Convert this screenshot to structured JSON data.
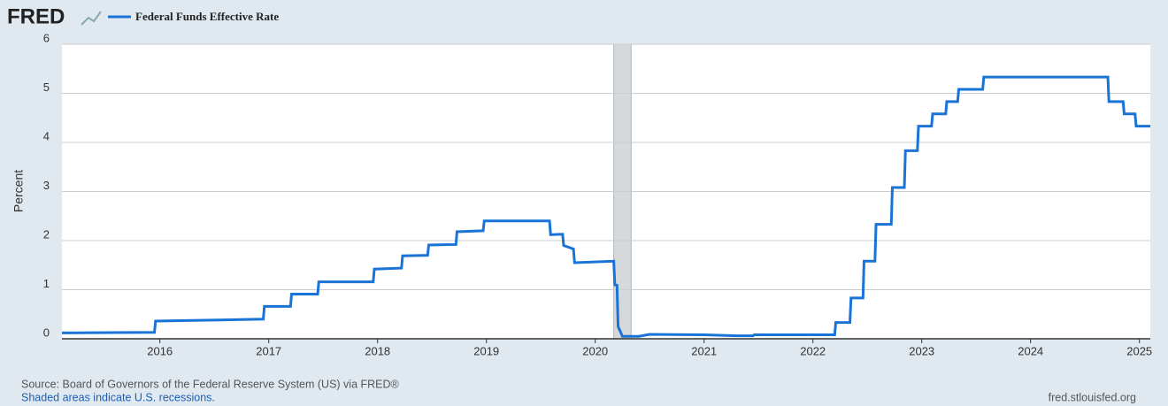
{
  "chart_data": {
    "type": "line",
    "logo": "FRED",
    "ylabel": "Percent",
    "source": "Source: Board of Governors of the Federal Reserve System (US) via FRED®",
    "recession_note": "Shaded areas indicate U.S. recessions.",
    "site": "fred.stlouisfed.org",
    "xlim": [
      2015.1,
      2025.1
    ],
    "xticks": [
      2016,
      2017,
      2018,
      2019,
      2020,
      2021,
      2022,
      2023,
      2024,
      2025
    ],
    "ylim": [
      0,
      6
    ],
    "yticks": [
      0,
      1,
      2,
      3,
      4,
      5,
      6
    ],
    "grid": true,
    "recessions": [
      [
        2020.17,
        2020.33
      ]
    ],
    "x": [
      2015.1,
      2015.95,
      2015.96,
      2016.95,
      2016.96,
      2017.2,
      2017.21,
      2017.45,
      2017.46,
      2017.96,
      2017.97,
      2018.22,
      2018.23,
      2018.46,
      2018.47,
      2018.72,
      2018.73,
      2018.97,
      2018.98,
      2019.58,
      2019.59,
      2019.7,
      2019.71,
      2019.8,
      2019.81,
      2020.17,
      2020.18,
      2020.2,
      2020.21,
      2020.25,
      2020.4,
      2020.5,
      2021.0,
      2021.3,
      2021.45,
      2021.46,
      2022.2,
      2022.21,
      2022.34,
      2022.35,
      2022.46,
      2022.47,
      2022.57,
      2022.58,
      2022.72,
      2022.73,
      2022.84,
      2022.85,
      2022.96,
      2022.97,
      2023.09,
      2023.1,
      2023.22,
      2023.23,
      2023.33,
      2023.34,
      2023.56,
      2023.57,
      2024.71,
      2024.72,
      2024.85,
      2024.86,
      2024.96,
      2024.97,
      2025.1
    ],
    "series": [
      {
        "name": "Federal Funds Effective Rate",
        "color": "#1a73d6",
        "values": [
          0.12,
          0.13,
          0.36,
          0.4,
          0.66,
          0.66,
          0.91,
          0.91,
          1.16,
          1.16,
          1.42,
          1.44,
          1.69,
          1.7,
          1.91,
          1.92,
          2.18,
          2.2,
          2.4,
          2.4,
          2.12,
          2.13,
          1.9,
          1.83,
          1.55,
          1.58,
          1.1,
          1.09,
          0.25,
          0.05,
          0.05,
          0.09,
          0.08,
          0.06,
          0.06,
          0.08,
          0.08,
          0.33,
          0.33,
          0.83,
          0.83,
          1.58,
          1.58,
          2.33,
          2.33,
          3.08,
          3.08,
          3.83,
          3.83,
          4.33,
          4.33,
          4.58,
          4.58,
          4.83,
          4.83,
          5.08,
          5.08,
          5.33,
          5.33,
          4.83,
          4.83,
          4.58,
          4.58,
          4.33,
          4.33
        ]
      }
    ]
  }
}
